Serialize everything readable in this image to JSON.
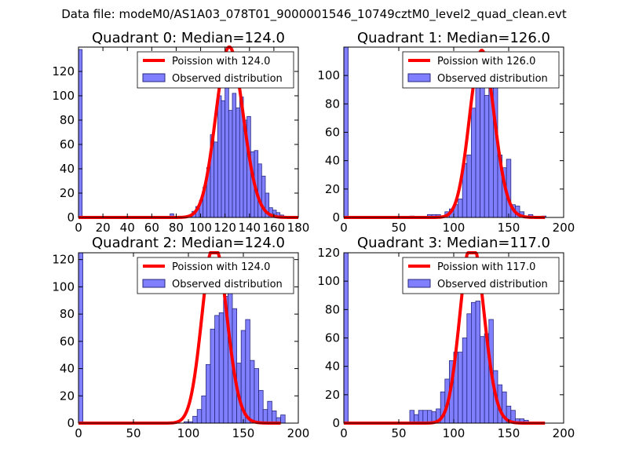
{
  "suptitle": "Data file: modeM0/AS1A03_078T01_9000001546_10749cztM0_level2_quad_clean.evt",
  "colors": {
    "bar_fill": "#7f7fff",
    "bar_edge": "#2a2a7f",
    "poisson_line": "#ff0000"
  },
  "chart_data": [
    {
      "type": "bar",
      "title": "Quadrant 0: Median=124.0",
      "xlim": [
        0,
        180
      ],
      "ylim": [
        0,
        140
      ],
      "xticks": [
        0,
        20,
        40,
        60,
        80,
        100,
        120,
        140,
        160,
        180
      ],
      "yticks": [
        0,
        20,
        40,
        60,
        80,
        100,
        120
      ],
      "legend": [
        "Poission with 124.0",
        "Observed distribution"
      ],
      "bin_width": 3,
      "bins": [
        [
          0,
          138
        ],
        [
          75,
          3
        ],
        [
          87,
          1
        ],
        [
          90,
          2
        ],
        [
          93,
          5
        ],
        [
          96,
          9
        ],
        [
          99,
          14
        ],
        [
          102,
          25
        ],
        [
          105,
          41
        ],
        [
          108,
          68
        ],
        [
          111,
          62
        ],
        [
          114,
          100
        ],
        [
          117,
          96
        ],
        [
          120,
          110
        ],
        [
          123,
          88
        ],
        [
          126,
          102
        ],
        [
          129,
          90
        ],
        [
          132,
          99
        ],
        [
          135,
          80
        ],
        [
          138,
          83
        ],
        [
          141,
          54
        ],
        [
          144,
          55
        ],
        [
          147,
          44
        ],
        [
          150,
          34
        ],
        [
          153,
          20
        ],
        [
          156,
          8
        ],
        [
          159,
          6
        ],
        [
          162,
          4
        ],
        [
          165,
          2
        ]
      ],
      "poisson": {
        "mu": 124.0,
        "x": [
          0,
          180
        ]
      }
    },
    {
      "type": "bar",
      "title": "Quadrant 1: Median=126.0",
      "xlim": [
        0,
        200
      ],
      "ylim": [
        0,
        120
      ],
      "xticks": [
        0,
        50,
        100,
        150,
        200
      ],
      "yticks": [
        0,
        20,
        40,
        60,
        80,
        100
      ],
      "legend": [
        "Poission with 126.0",
        "Observed distribution"
      ],
      "bin_width": 4,
      "bins": [
        [
          0,
          120
        ],
        [
          60,
          1
        ],
        [
          76,
          2
        ],
        [
          80,
          2
        ],
        [
          84,
          2
        ],
        [
          92,
          4
        ],
        [
          96,
          6
        ],
        [
          100,
          9
        ],
        [
          104,
          13
        ],
        [
          108,
          38
        ],
        [
          112,
          44
        ],
        [
          116,
          77
        ],
        [
          120,
          96
        ],
        [
          124,
          103
        ],
        [
          128,
          86
        ],
        [
          132,
          103
        ],
        [
          136,
          98
        ],
        [
          140,
          44
        ],
        [
          144,
          35
        ],
        [
          148,
          41
        ],
        [
          152,
          9
        ],
        [
          156,
          8
        ],
        [
          160,
          4
        ],
        [
          168,
          2
        ],
        [
          180,
          1
        ]
      ],
      "poisson": {
        "mu": 126.0,
        "x": [
          0,
          183
        ]
      }
    },
    {
      "type": "bar",
      "title": "Quadrant 2: Median=124.0",
      "xlim": [
        0,
        200
      ],
      "ylim": [
        0,
        125
      ],
      "xticks": [
        0,
        50,
        100,
        150,
        200
      ],
      "yticks": [
        0,
        20,
        40,
        60,
        80,
        100,
        120
      ],
      "legend": [
        "Poission with 124.0",
        "Observed distribution"
      ],
      "bin_width": 4,
      "bins": [
        [
          0,
          125
        ],
        [
          100,
          1
        ],
        [
          96,
          1
        ],
        [
          104,
          5
        ],
        [
          108,
          10
        ],
        [
          112,
          20
        ],
        [
          116,
          43
        ],
        [
          120,
          69
        ],
        [
          124,
          79
        ],
        [
          128,
          81
        ],
        [
          132,
          93
        ],
        [
          136,
          97
        ],
        [
          140,
          84
        ],
        [
          144,
          44
        ],
        [
          148,
          68
        ],
        [
          152,
          76
        ],
        [
          156,
          46
        ],
        [
          160,
          40
        ],
        [
          164,
          24
        ],
        [
          168,
          10
        ],
        [
          172,
          16
        ],
        [
          176,
          9
        ],
        [
          180,
          4
        ],
        [
          184,
          6
        ]
      ],
      "poisson": {
        "mu": 124.0,
        "x": [
          0,
          184
        ]
      }
    },
    {
      "type": "bar",
      "title": "Quadrant 3: Median=117.0",
      "xlim": [
        0,
        200
      ],
      "ylim": [
        0,
        120
      ],
      "xticks": [
        0,
        50,
        100,
        150,
        200
      ],
      "yticks": [
        0,
        20,
        40,
        60,
        80,
        100,
        120
      ],
      "legend": [
        "Poission with 117.0",
        "Observed distribution"
      ],
      "bin_width": 4,
      "bins": [
        [
          0,
          120
        ],
        [
          60,
          9
        ],
        [
          64,
          6
        ],
        [
          68,
          9
        ],
        [
          72,
          9
        ],
        [
          76,
          9
        ],
        [
          80,
          8
        ],
        [
          84,
          10
        ],
        [
          88,
          22
        ],
        [
          92,
          31
        ],
        [
          96,
          44
        ],
        [
          100,
          50
        ],
        [
          104,
          50
        ],
        [
          108,
          60
        ],
        [
          112,
          77
        ],
        [
          116,
          85
        ],
        [
          120,
          86
        ],
        [
          124,
          61
        ],
        [
          128,
          63
        ],
        [
          132,
          73
        ],
        [
          136,
          37
        ],
        [
          140,
          27
        ],
        [
          144,
          22
        ],
        [
          148,
          12
        ],
        [
          152,
          9
        ],
        [
          156,
          3
        ],
        [
          160,
          3
        ],
        [
          164,
          2
        ]
      ],
      "poisson": {
        "mu": 117.0,
        "x": [
          0,
          183
        ]
      }
    }
  ]
}
